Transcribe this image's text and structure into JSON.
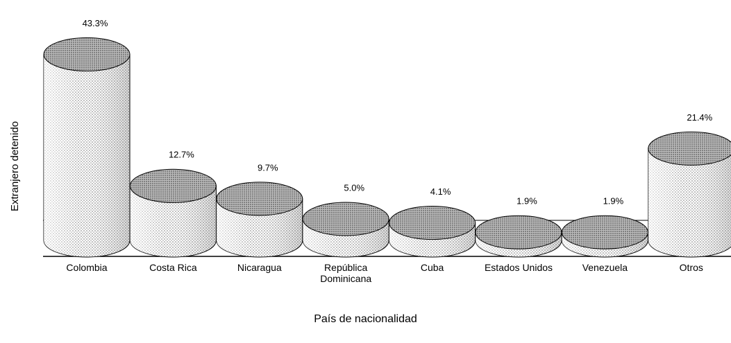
{
  "chart_data": {
    "type": "cylinder",
    "categories": [
      "Colombia",
      "Costa Rica",
      "Nicaragua",
      "República Dominicana",
      "Cuba",
      "Estados Unidos",
      "Venezuela",
      "Otros"
    ],
    "values": [
      43.3,
      12.7,
      9.7,
      5.0,
      4.1,
      1.9,
      1.9,
      21.4
    ],
    "value_labels": [
      "43.3%",
      "12.7%",
      "9.7%",
      "5.0%",
      "4.1%",
      "1.9%",
      "1.9%",
      "21.4%"
    ],
    "y_label": "Extranjero detenido",
    "x_label": "País de nacionalidad",
    "color": "#d9d9d9",
    "top_color": "#9a9a9a"
  }
}
